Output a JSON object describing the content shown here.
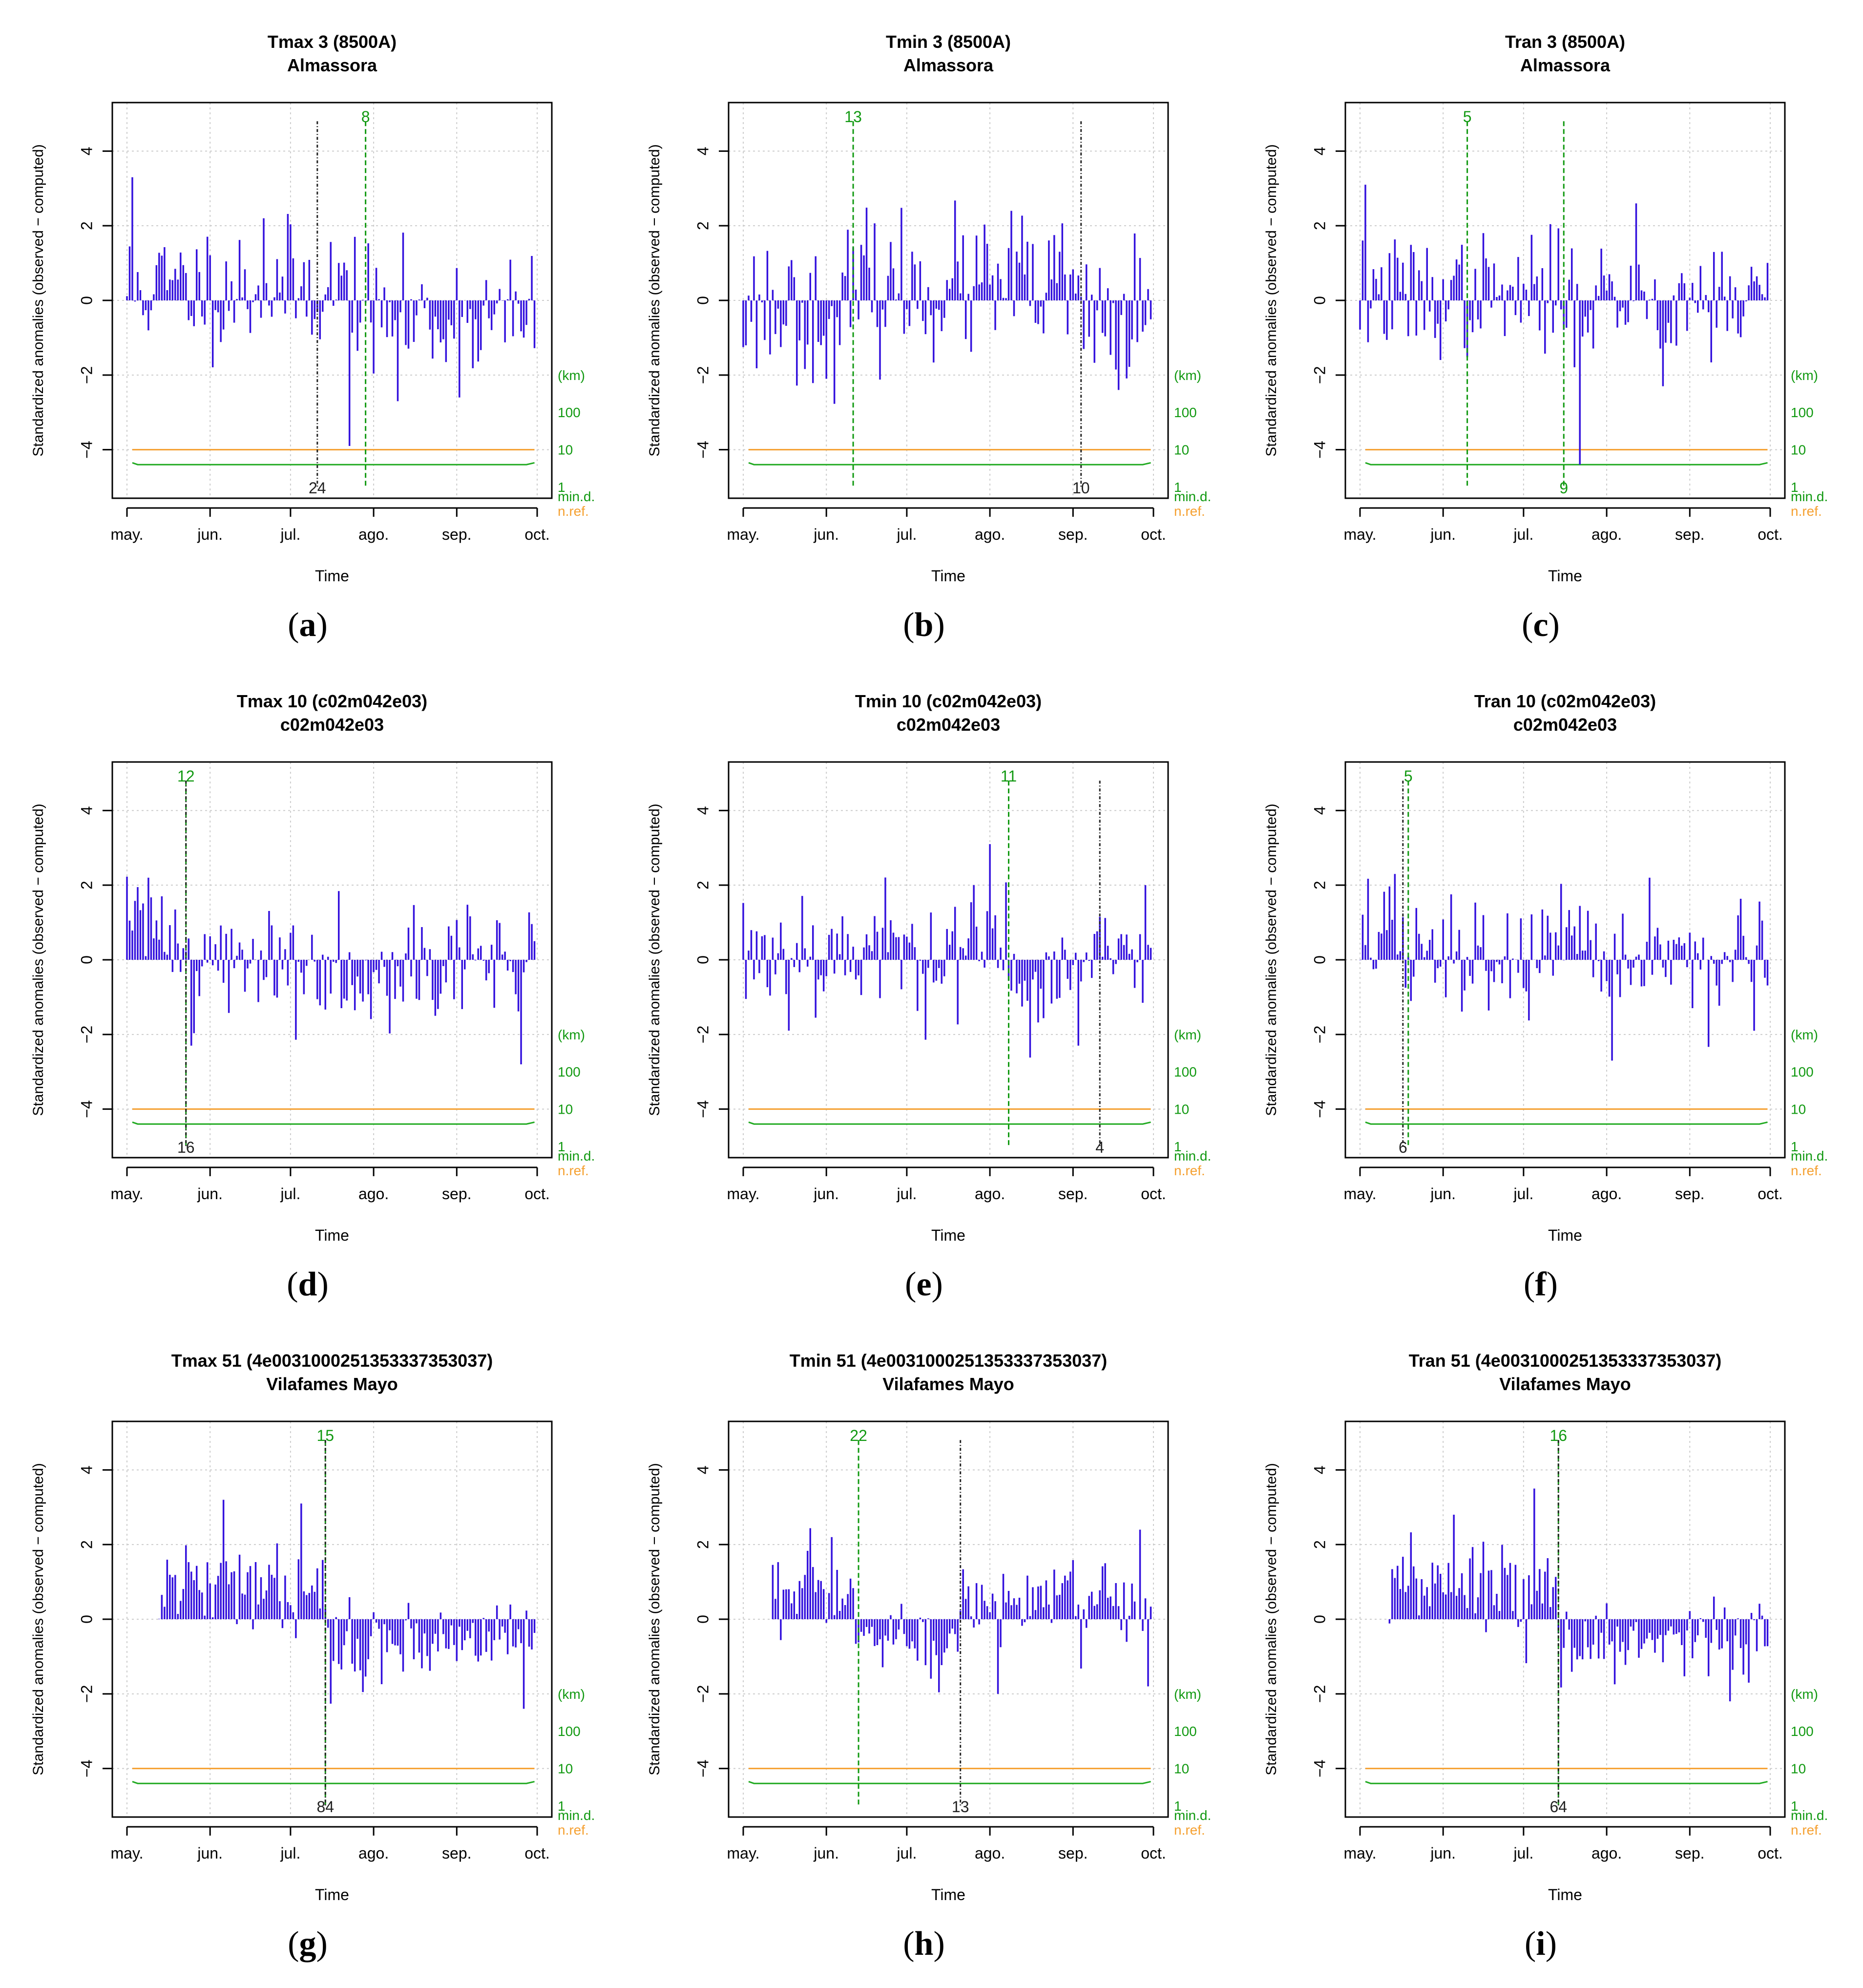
{
  "shared": {
    "ylabel": "Standardized anomalies (observed − computed)",
    "xlabel": "Time",
    "months": [
      "may.",
      "jun.",
      "jul.",
      "ago.",
      "sep.",
      "oct."
    ],
    "yticks": [
      "4",
      "2",
      "0",
      "−2",
      "−4"
    ],
    "right_axis": {
      "unit": "(km)",
      "ticks": [
        "100",
        "10",
        "1"
      ],
      "mind": "min.d.",
      "nref": "n.ref."
    },
    "colors": {
      "bars": "#3311dd",
      "mind_line": "#22aa22",
      "nref_line": "#f5a030",
      "green_text": "#119911",
      "break_black": "#222222",
      "grid": "#cccccc"
    }
  },
  "chart_data": [
    {
      "type": "bar",
      "id": "a",
      "caption": "a",
      "title": "Tmax   3 (8500A)",
      "subtitle": "Almassora",
      "ylim": [
        -5.3,
        5.3
      ],
      "x_range_days": [
        0,
        153
      ],
      "series_start_day": 0,
      "breaks": [
        {
          "day": 71,
          "label": "24",
          "color": "black",
          "label_pos": "bottom"
        },
        {
          "day": 89,
          "label": "8",
          "color": "green",
          "label_pos": "top"
        }
      ],
      "mind_level": -4.4,
      "nref_level": -4.0,
      "seed": 11,
      "sd": 0.85,
      "segments": [
        {
          "from": 0,
          "to": 89,
          "mean": 0.35
        },
        {
          "from": 89,
          "to": 153,
          "mean": -0.5
        }
      ],
      "extremes": [
        {
          "day": 2,
          "value": 3.3
        },
        {
          "day": 51,
          "value": 2.2
        },
        {
          "day": 83,
          "value": -3.9
        },
        {
          "day": 101,
          "value": -2.7
        }
      ]
    },
    {
      "type": "bar",
      "id": "b",
      "caption": "b",
      "title": "Tmin   3 (8500A)",
      "subtitle": "Almassora",
      "ylim": [
        -5.3,
        5.3
      ],
      "x_range_days": [
        0,
        153
      ],
      "series_start_day": 0,
      "breaks": [
        {
          "day": 41,
          "label": "13",
          "color": "green",
          "label_pos": "top"
        },
        {
          "day": 126,
          "label": "10",
          "color": "black",
          "label_pos": "bottom"
        }
      ],
      "mind_level": -4.4,
      "nref_level": -4.0,
      "seed": 23,
      "sd": 0.95,
      "segments": [
        {
          "from": 0,
          "to": 41,
          "mean": -0.2
        },
        {
          "from": 41,
          "to": 126,
          "mean": 0.3
        },
        {
          "from": 126,
          "to": 153,
          "mean": -0.6
        }
      ],
      "extremes": [
        {
          "day": 100,
          "value": 2.4
        },
        {
          "day": 31,
          "value": -2.1
        },
        {
          "day": 140,
          "value": -2.4
        }
      ]
    },
    {
      "type": "bar",
      "id": "c",
      "caption": "c",
      "title": "Tran   3 (8500A)",
      "subtitle": "Almassora",
      "ylim": [
        -5.3,
        5.3
      ],
      "x_range_days": [
        0,
        153
      ],
      "series_start_day": 0,
      "breaks": [
        {
          "day": 40,
          "label": "5",
          "color": "green",
          "label_pos": "top"
        },
        {
          "day": 76,
          "label": "9",
          "color": "green",
          "label_pos": "bottom"
        }
      ],
      "mind_level": -4.4,
      "nref_level": -4.0,
      "seed": 37,
      "sd": 0.8,
      "segments": [
        {
          "from": 0,
          "to": 153,
          "mean": 0.1
        }
      ],
      "extremes": [
        {
          "day": 2,
          "value": 3.1
        },
        {
          "day": 82,
          "value": -4.4
        },
        {
          "day": 103,
          "value": 2.6
        },
        {
          "day": 113,
          "value": -2.3
        }
      ]
    },
    {
      "type": "bar",
      "id": "d",
      "caption": "d",
      "title": "Tmax   10 (c02m042e03)",
      "subtitle": "c02m042e03",
      "ylim": [
        -5.3,
        5.3
      ],
      "x_range_days": [
        0,
        153
      ],
      "series_start_day": 0,
      "breaks": [
        {
          "day": 22,
          "label": "12",
          "color": "green",
          "label_pos": "top"
        },
        {
          "day": 22,
          "label": "16",
          "color": "black",
          "label_pos": "bottom"
        }
      ],
      "mind_level": -4.4,
      "nref_level": -4.0,
      "seed": 41,
      "sd": 0.8,
      "segments": [
        {
          "from": 0,
          "to": 22,
          "mean": 0.9
        },
        {
          "from": 22,
          "to": 153,
          "mean": -0.1
        }
      ],
      "extremes": [
        {
          "day": 8,
          "value": 2.2
        },
        {
          "day": 147,
          "value": -2.8
        },
        {
          "day": 24,
          "value": -2.3
        }
      ]
    },
    {
      "type": "bar",
      "id": "e",
      "caption": "e",
      "title": "Tmin   10 (c02m042e03)",
      "subtitle": "c02m042e03",
      "ylim": [
        -5.3,
        5.3
      ],
      "x_range_days": [
        0,
        153
      ],
      "series_start_day": 0,
      "breaks": [
        {
          "day": 99,
          "label": "11",
          "color": "green",
          "label_pos": "top"
        },
        {
          "day": 133,
          "label": "4",
          "color": "black",
          "label_pos": "bottom"
        }
      ],
      "mind_level": -4.4,
      "nref_level": -4.0,
      "seed": 53,
      "sd": 0.9,
      "segments": [
        {
          "from": 0,
          "to": 99,
          "mean": 0.25
        },
        {
          "from": 99,
          "to": 133,
          "mean": -0.55
        },
        {
          "from": 133,
          "to": 153,
          "mean": 0.4
        }
      ],
      "extremes": [
        {
          "day": 92,
          "value": 3.1
        },
        {
          "day": 125,
          "value": -2.3
        },
        {
          "day": 150,
          "value": 2.0
        }
      ]
    },
    {
      "type": "bar",
      "id": "f",
      "caption": "f",
      "title": "Tran   10 (c02m042e03)",
      "subtitle": "c02m042e03",
      "ylim": [
        -5.3,
        5.3
      ],
      "x_range_days": [
        0,
        153
      ],
      "series_start_day": 0,
      "breaks": [
        {
          "day": 18,
          "label": "5",
          "color": "green",
          "label_pos": "top"
        },
        {
          "day": 16,
          "label": "6",
          "color": "black",
          "label_pos": "bottom"
        }
      ],
      "mind_level": -4.4,
      "nref_level": -4.0,
      "seed": 67,
      "sd": 0.8,
      "segments": [
        {
          "from": 0,
          "to": 17,
          "mean": 0.8
        },
        {
          "from": 17,
          "to": 153,
          "mean": 0.0
        }
      ],
      "extremes": [
        {
          "day": 13,
          "value": 2.3
        },
        {
          "day": 94,
          "value": -2.7
        },
        {
          "day": 108,
          "value": 2.2
        },
        {
          "day": 147,
          "value": -1.9
        }
      ]
    },
    {
      "type": "bar",
      "id": "g",
      "caption": "g",
      "title": "Tmax   51 (4e003100025135333735303​7)",
      "subtitle": "Vilafames Mayo",
      "ylim": [
        -5.3,
        5.3
      ],
      "x_range_days": [
        0,
        153
      ],
      "series_start_day": 12,
      "breaks": [
        {
          "day": 74,
          "label": "15",
          "color": "green",
          "label_pos": "top"
        },
        {
          "day": 74,
          "label": "84",
          "color": "black",
          "label_pos": "bottom"
        }
      ],
      "mind_level": -4.4,
      "nref_level": -4.0,
      "seed": 79,
      "sd": 0.55,
      "segments": [
        {
          "from": 12,
          "to": 74,
          "mean": 0.85
        },
        {
          "from": 74,
          "to": 153,
          "mean": -0.55
        }
      ],
      "extremes": [
        {
          "day": 36,
          "value": 3.2
        },
        {
          "day": 65,
          "value": 3.1
        },
        {
          "day": 148,
          "value": -2.4
        }
      ]
    },
    {
      "type": "bar",
      "id": "h",
      "caption": "h",
      "title": "Tmin   51 (4e003100025135333735303​7)",
      "subtitle": "Vilafames Mayo",
      "ylim": [
        -5.3,
        5.3
      ],
      "x_range_days": [
        0,
        153
      ],
      "series_start_day": 11,
      "breaks": [
        {
          "day": 43,
          "label": "22",
          "color": "green",
          "label_pos": "top"
        },
        {
          "day": 81,
          "label": "13",
          "color": "black",
          "label_pos": "bottom"
        }
      ],
      "mind_level": -4.4,
      "nref_level": -4.0,
      "seed": 97,
      "sd": 0.6,
      "segments": [
        {
          "from": 11,
          "to": 43,
          "mean": 0.6
        },
        {
          "from": 43,
          "to": 81,
          "mean": -0.75
        },
        {
          "from": 81,
          "to": 153,
          "mean": 0.45
        }
      ],
      "extremes": [
        {
          "day": 33,
          "value": 2.2
        },
        {
          "day": 95,
          "value": -2.0
        },
        {
          "day": 148,
          "value": 2.4
        },
        {
          "day": 151,
          "value": -1.8
        }
      ]
    },
    {
      "type": "bar",
      "id": "i",
      "caption": "i",
      "title": "Tran   51 (4e003100025135333735303​7)",
      "subtitle": "Vilafames Mayo",
      "ylim": [
        -5.3,
        5.3
      ],
      "x_range_days": [
        0,
        153
      ],
      "series_start_day": 11,
      "breaks": [
        {
          "day": 74,
          "label": "16",
          "color": "green",
          "label_pos": "top"
        },
        {
          "day": 74,
          "label": "64",
          "color": "black",
          "label_pos": "bottom"
        }
      ],
      "mind_level": -4.4,
      "nref_level": -4.0,
      "seed": 113,
      "sd": 0.55,
      "segments": [
        {
          "from": 11,
          "to": 74,
          "mean": 0.75
        },
        {
          "from": 74,
          "to": 153,
          "mean": -0.55
        }
      ],
      "extremes": [
        {
          "day": 35,
          "value": 2.8
        },
        {
          "day": 65,
          "value": 3.5
        },
        {
          "day": 138,
          "value": -2.2
        },
        {
          "day": 145,
          "value": -1.7
        }
      ]
    }
  ]
}
